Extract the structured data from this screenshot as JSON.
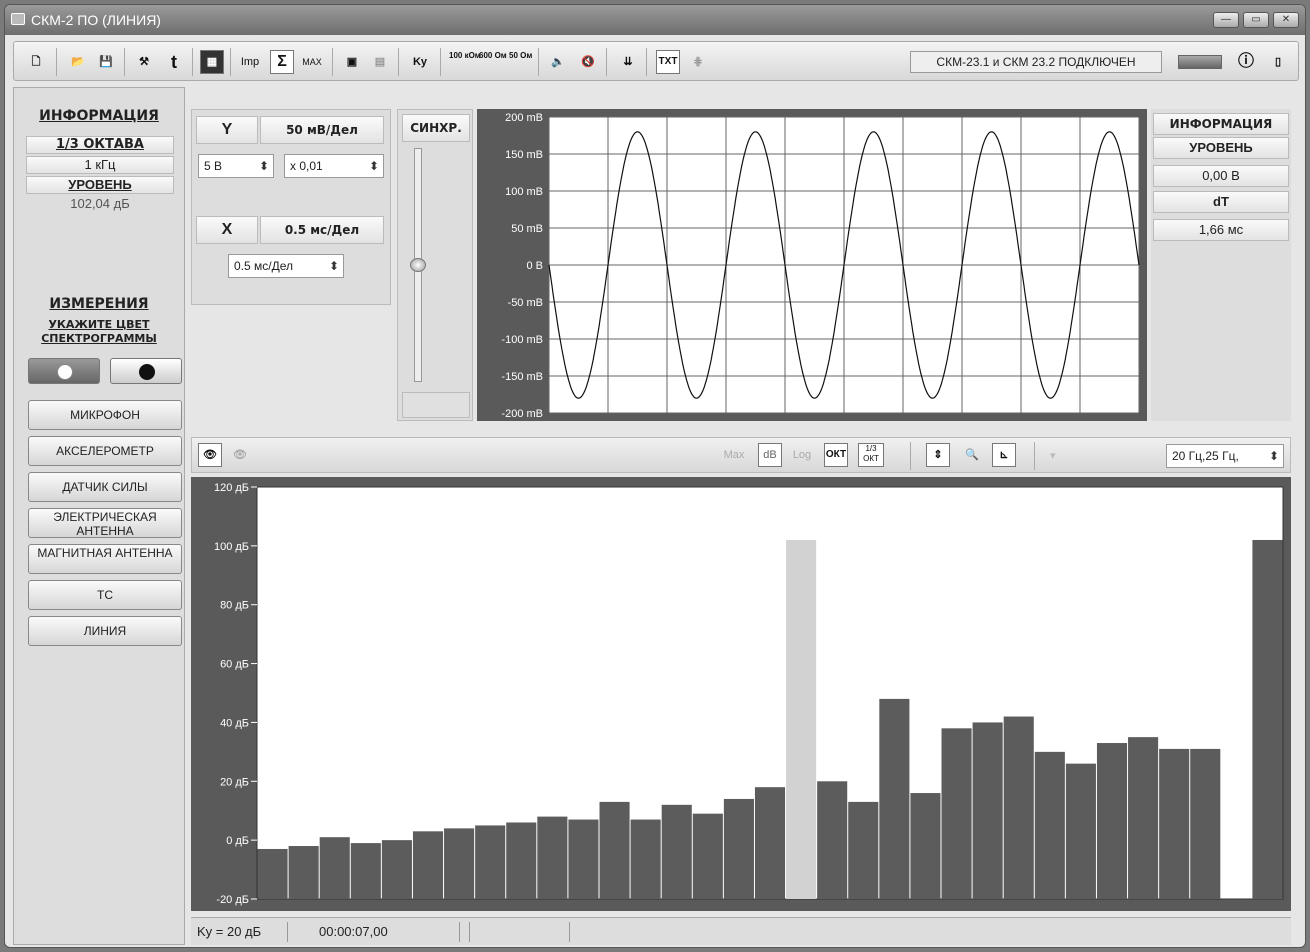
{
  "window": {
    "title": "СКМ-2 ПО (ЛИНИЯ)"
  },
  "toolbar": {
    "imp": "Imp",
    "sigma": "Σ",
    "max": "MAX",
    "ky": "Ky",
    "ohm100": "100 кОм",
    "ohm600": "600 Ом",
    "ohm50": "50 Ом",
    "txt": "TXT",
    "connection": "СКМ-23.1 и СКМ 23.2 ПОДКЛЮЧЕН"
  },
  "left": {
    "info_title": "ИНФОРМАЦИЯ",
    "octave_label": "1/3 ОКТАВА",
    "octave_value": "1 кГц",
    "level_label": "УРОВЕНЬ",
    "level_value": "102,04 дБ",
    "measure_title": "ИЗМЕРЕНИЯ",
    "color_hint1": "УКАЖИТЕ ЦВЕТ",
    "color_hint2": "СПЕКТРОГРАММЫ",
    "sources": [
      "МИКРОФОН",
      "АКСЕЛЕРОМЕТР",
      "ДАТЧИК СИЛЫ",
      "ЭЛЕКТРИЧЕСКАЯ АНТЕННА",
      "МАГНИТНАЯ АНТЕННА",
      "ТС",
      "ЛИНИЯ"
    ]
  },
  "scope": {
    "y_label": "Y",
    "y_div": "50 мВ/Дел",
    "y_range": "5 В",
    "y_mult": "x 0,01",
    "x_label": "X",
    "x_div": "0.5 мс/Дел",
    "x_select": "0.5 мс/Дел",
    "sync": "СИНХР."
  },
  "right": {
    "info_title": "ИНФОРМАЦИЯ",
    "level_label": "УРОВЕНЬ",
    "level_value": "0,00 В",
    "dt_label": "dT",
    "dt_value": "1,66 мс"
  },
  "spectrum_toolbar": {
    "max": "Max",
    "db": "dB",
    "log": "Log",
    "okt": "ОКТ",
    "third_okt": "1/3 ОКТ",
    "freq_select": "20 Гц,25 Гц,"
  },
  "status": {
    "ky": "Ky = 20 дБ",
    "time": "00:00:07,00"
  },
  "chart_data": [
    {
      "type": "line",
      "title": "",
      "ylabel": "",
      "ylim": [
        -200,
        200
      ],
      "y_ticks": [
        "200 mB",
        "150 mB",
        "100 mB",
        "50 mB",
        "0 B",
        "-50 mB",
        "-100 mB",
        "-150 mB",
        "-200 mB"
      ],
      "x_divisions": 10,
      "series": [
        {
          "shape": "sine",
          "amplitude": 180,
          "periods": 5,
          "start_phase": "zero-falling"
        }
      ]
    },
    {
      "type": "bar",
      "title": "",
      "ylabel": "",
      "ylim": [
        -20,
        120
      ],
      "y_ticks": [
        "120 дБ",
        "100 дБ",
        "80 дБ",
        "60 дБ",
        "40 дБ",
        "20 дБ",
        "0 дБ",
        "-20 дБ"
      ],
      "values": [
        -3,
        -2,
        1,
        -1,
        0,
        3,
        4,
        5,
        6,
        8,
        7,
        13,
        7,
        12,
        9,
        14,
        18,
        102,
        20,
        13,
        48,
        16,
        38,
        40,
        42,
        30,
        26,
        33,
        35,
        31,
        31,
        -20,
        102
      ],
      "highlight_index": 17,
      "bar_color": "#5c5c5c",
      "highlight_color": "#d2d2d2"
    }
  ]
}
